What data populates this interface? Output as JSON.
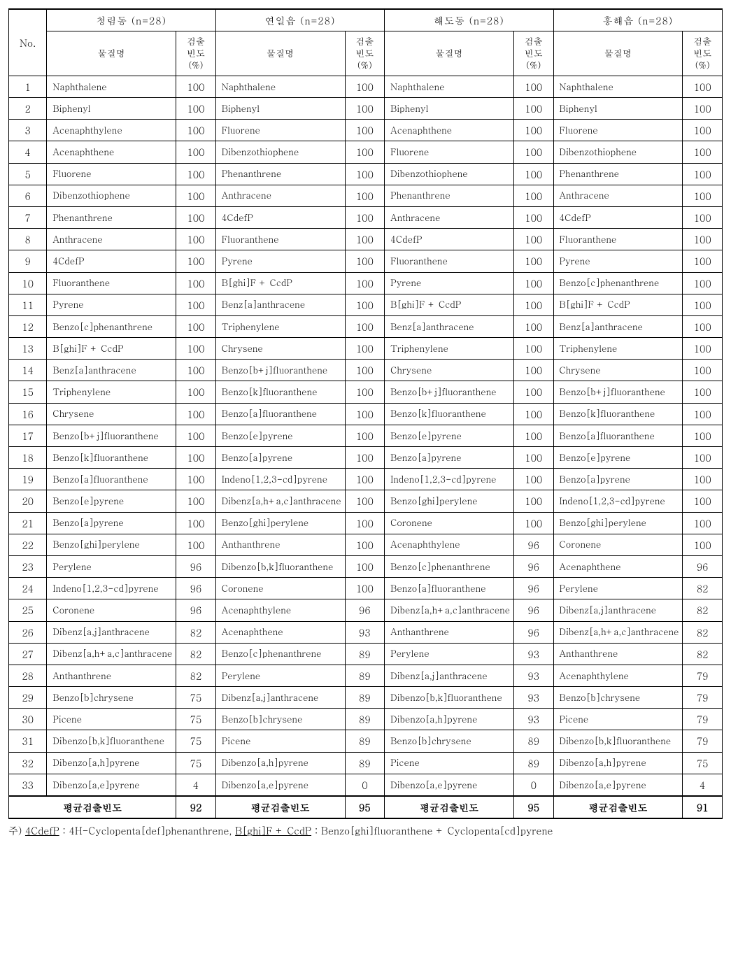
{
  "table": {
    "no_header": "No.",
    "name_header": "물질명",
    "freq_header": "검출\n빈도\n(%)",
    "summary_label": "평균검출빈도",
    "regions": [
      {
        "title": "청림동  (n=28)",
        "avg": "92"
      },
      {
        "title": "연일읍    (n=28)",
        "avg": "95"
      },
      {
        "title": "해도동  (n=28)",
        "avg": "95"
      },
      {
        "title": "흥해읍  (n=28)",
        "avg": "91"
      }
    ],
    "rows": [
      {
        "no": "1",
        "c": [
          [
            "Naphthalene",
            "100"
          ],
          [
            "Naphthalene",
            "100"
          ],
          [
            "Naphthalene",
            "100"
          ],
          [
            "Naphthalene",
            "100"
          ]
        ]
      },
      {
        "no": "2",
        "c": [
          [
            "Biphenyl",
            "100"
          ],
          [
            "Biphenyl",
            "100"
          ],
          [
            "Biphenyl",
            "100"
          ],
          [
            "Biphenyl",
            "100"
          ]
        ]
      },
      {
        "no": "3",
        "c": [
          [
            "Acenaphthylene",
            "100"
          ],
          [
            "Fluorene",
            "100"
          ],
          [
            "Acenaphthene",
            "100"
          ],
          [
            "Fluorene",
            "100"
          ]
        ]
      },
      {
        "no": "4",
        "c": [
          [
            "Acenaphthene",
            "100"
          ],
          [
            "Dibenzothiophene",
            "100"
          ],
          [
            "Fluorene",
            "100"
          ],
          [
            "Dibenzothiophene",
            "100"
          ]
        ]
      },
      {
        "no": "5",
        "c": [
          [
            "Fluorene",
            "100"
          ],
          [
            "Phenanthrene",
            "100"
          ],
          [
            "Dibenzothiophene",
            "100"
          ],
          [
            "Phenanthrene",
            "100"
          ]
        ]
      },
      {
        "no": "6",
        "c": [
          [
            "Dibenzothiophene",
            "100"
          ],
          [
            "Anthracene",
            "100"
          ],
          [
            "Phenanthrene",
            "100"
          ],
          [
            "Anthracene",
            "100"
          ]
        ]
      },
      {
        "no": "7",
        "c": [
          [
            "Phenanthrene",
            "100"
          ],
          [
            "4CdefP",
            "100"
          ],
          [
            "Anthracene",
            "100"
          ],
          [
            "4CdefP",
            "100"
          ]
        ]
      },
      {
        "no": "8",
        "c": [
          [
            "Anthracene",
            "100"
          ],
          [
            "Fluoranthene",
            "100"
          ],
          [
            "4CdefP",
            "100"
          ],
          [
            "Fluoranthene",
            "100"
          ]
        ]
      },
      {
        "no": "9",
        "c": [
          [
            "4CdefP",
            "100"
          ],
          [
            "Pyrene",
            "100"
          ],
          [
            "Fluoranthene",
            "100"
          ],
          [
            "Pyrene",
            "100"
          ]
        ]
      },
      {
        "no": "10",
        "c": [
          [
            "Fluoranthene",
            "100"
          ],
          [
            "B[ghi]F  +  CcdP",
            "100"
          ],
          [
            "Pyrene",
            "100"
          ],
          [
            "Benzo[c]phenanthrene",
            "100"
          ]
        ]
      },
      {
        "no": "11",
        "c": [
          [
            "Pyrene",
            "100"
          ],
          [
            "Benz[a]anthracene",
            "100"
          ],
          [
            "B[ghi]F  +  CcdP",
            "100"
          ],
          [
            "B[ghi]F  +  CcdP",
            "100"
          ]
        ]
      },
      {
        "no": "12",
        "c": [
          [
            "Benzo[c]phenanthrene",
            "100"
          ],
          [
            "Triphenylene",
            "100"
          ],
          [
            "Benz[a]anthracene",
            "100"
          ],
          [
            "Benz[a]anthracene",
            "100"
          ]
        ]
      },
      {
        "no": "13",
        "c": [
          [
            "B[ghi]F  +  CcdP",
            "100"
          ],
          [
            "Chrysene",
            "100"
          ],
          [
            "Triphenylene",
            "100"
          ],
          [
            "Triphenylene",
            "100"
          ]
        ]
      },
      {
        "no": "14",
        "c": [
          [
            "Benz[a]anthracene",
            "100"
          ],
          [
            "Benzo[b+j]fluoranthene",
            "100"
          ],
          [
            "Chrysene",
            "100"
          ],
          [
            "Chrysene",
            "100"
          ]
        ]
      },
      {
        "no": "15",
        "c": [
          [
            "Triphenylene",
            "100"
          ],
          [
            "Benzo[k]fluoranthene",
            "100"
          ],
          [
            "Benzo[b+j]fluoranthene",
            "100"
          ],
          [
            "Benzo[b+j]fluoranthene",
            "100"
          ]
        ]
      },
      {
        "no": "16",
        "c": [
          [
            "Chrysene",
            "100"
          ],
          [
            "Benzo[a]fluoranthene",
            "100"
          ],
          [
            "Benzo[k]fluoranthene",
            "100"
          ],
          [
            "Benzo[k]fluoranthene",
            "100"
          ]
        ]
      },
      {
        "no": "17",
        "c": [
          [
            "Benzo[b+j]fluoranthene",
            "100"
          ],
          [
            "Benzo[e]pyrene",
            "100"
          ],
          [
            "Benzo[e]pyrene",
            "100"
          ],
          [
            "Benzo[a]fluoranthene",
            "100"
          ]
        ]
      },
      {
        "no": "18",
        "c": [
          [
            "Benzo[k]fluoranthene",
            "100"
          ],
          [
            "Benzo[a]pyrene",
            "100"
          ],
          [
            "Benzo[a]pyrene",
            "100"
          ],
          [
            "Benzo[e]pyrene",
            "100"
          ]
        ]
      },
      {
        "no": "19",
        "c": [
          [
            "Benzo[a]fluoranthene",
            "100"
          ],
          [
            "Indeno[1,2,3-cd]pyrene",
            "100"
          ],
          [
            "Indeno[1,2,3-cd]pyrene",
            "100"
          ],
          [
            "Benzo[a]pyrene",
            "100"
          ]
        ]
      },
      {
        "no": "20",
        "c": [
          [
            "Benzo[e]pyrene",
            "100"
          ],
          [
            "Dibenz[a,h+a,c]anthracene",
            "100"
          ],
          [
            "Benzo[ghi]perylene",
            "100"
          ],
          [
            "Indeno[1,2,3-cd]pyrene",
            "100"
          ]
        ]
      },
      {
        "no": "21",
        "c": [
          [
            "Benzo[a]pyrene",
            "100"
          ],
          [
            "Benzo[ghi]perylene",
            "100"
          ],
          [
            "Coronene",
            "100"
          ],
          [
            "Benzo[ghi]perylene",
            "100"
          ]
        ]
      },
      {
        "no": "22",
        "c": [
          [
            "Benzo[ghi]perylene",
            "100"
          ],
          [
            "Anthanthrene",
            "100"
          ],
          [
            "Acenaphthylene",
            "96"
          ],
          [
            "Coronene",
            "100"
          ]
        ]
      },
      {
        "no": "23",
        "c": [
          [
            "Perylene",
            "96"
          ],
          [
            "Dibenzo[b,k]fluoranthene",
            "100"
          ],
          [
            "Benzo[c]phenanthrene",
            "96"
          ],
          [
            "Acenaphthene",
            "96"
          ]
        ]
      },
      {
        "no": "24",
        "c": [
          [
            "Indeno[1,2,3-cd]pyrene",
            "96"
          ],
          [
            "Coronene",
            "100"
          ],
          [
            "Benzo[a]fluoranthene",
            "96"
          ],
          [
            "Perylene",
            "82"
          ]
        ]
      },
      {
        "no": "25",
        "c": [
          [
            "Coronene",
            "96"
          ],
          [
            "Acenaphthylene",
            "96"
          ],
          [
            "Dibenz[a,h+a,c]anthracene",
            "96"
          ],
          [
            "Dibenz[a,j]anthracene",
            "82"
          ]
        ]
      },
      {
        "no": "26",
        "c": [
          [
            "Dibenz[a,j]anthracene",
            "82"
          ],
          [
            "Acenaphthene",
            "93"
          ],
          [
            "Anthanthrene",
            "96"
          ],
          [
            "Dibenz[a,h+a,c]anthracene",
            "82"
          ]
        ]
      },
      {
        "no": "27",
        "c": [
          [
            "Dibenz[a,h+a,c]anthracene",
            "82"
          ],
          [
            "Benzo[c]phenanthrene",
            "89"
          ],
          [
            "Perylene",
            "93"
          ],
          [
            "Anthanthrene",
            "82"
          ]
        ]
      },
      {
        "no": "28",
        "c": [
          [
            "Anthanthrene",
            "82"
          ],
          [
            "Perylene",
            "89"
          ],
          [
            "Dibenz[a,j]anthracene",
            "93"
          ],
          [
            "Acenaphthylene",
            "79"
          ]
        ]
      },
      {
        "no": "29",
        "c": [
          [
            "Benzo[b]chrysene",
            "75"
          ],
          [
            "Dibenz[a,j]anthracene",
            "89"
          ],
          [
            "Dibenzo[b,k]fluoranthene",
            "93"
          ],
          [
            "Benzo[b]chrysene",
            "79"
          ]
        ]
      },
      {
        "no": "30",
        "c": [
          [
            "Picene",
            "75"
          ],
          [
            "Benzo[b]chrysene",
            "89"
          ],
          [
            "Dibenzo[a,h]pyrene",
            "93"
          ],
          [
            "Picene",
            "79"
          ]
        ]
      },
      {
        "no": "31",
        "c": [
          [
            "Dibenzo[b,k]fluoranthene",
            "75"
          ],
          [
            "Picene",
            "89"
          ],
          [
            "Benzo[b]chrysene",
            "89"
          ],
          [
            "Dibenzo[b,k]fluoranthene",
            "79"
          ]
        ]
      },
      {
        "no": "32",
        "c": [
          [
            "Dibenzo[a,h]pyrene",
            "75"
          ],
          [
            "Dibenzo[a,h]pyrene",
            "89"
          ],
          [
            "Picene",
            "89"
          ],
          [
            "Dibenzo[a,h]pyrene",
            "75"
          ]
        ]
      },
      {
        "no": "33",
        "c": [
          [
            "Dibenzo[a,e]pyrene",
            "4"
          ],
          [
            "Dibenzo[a,e]pyrene",
            "0"
          ],
          [
            "Dibenzo[a,e]pyrene",
            "0"
          ],
          [
            "Dibenzo[a,e]pyrene",
            "4"
          ]
        ]
      }
    ]
  },
  "footnote": {
    "prefix": "주)  ",
    "u1": "4CdefP",
    "mid1": " : 4H-Cyclopenta[def]phenanthrene, ",
    "u2": "B[ghi]F  +  CcdP",
    "mid2": " : Benzo[ghi]fluoranthene  +  Cyclopenta[cd]pyrene"
  }
}
